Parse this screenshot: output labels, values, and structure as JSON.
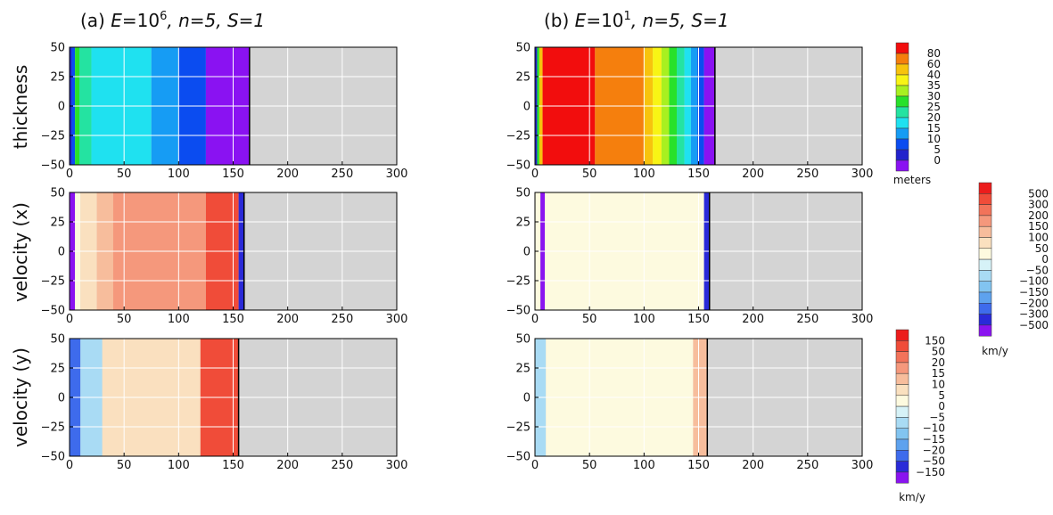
{
  "colors": {
    "no_data": "#d4d4d4",
    "grid": "#ffffff",
    "contour_line": "#000000"
  },
  "panel_titles": {
    "a": {
      "prefix": "(a) ",
      "E_sym": "E",
      "E_eq": "=10",
      "E_exp": "6",
      "rest": ", n=5, S=1"
    },
    "b": {
      "prefix": "(b) ",
      "E_sym": "E",
      "E_eq": "=10",
      "E_exp": "1",
      "rest": ", n=5, S=1"
    }
  },
  "row_labels": [
    "thickness",
    "velocity (x)",
    "velocity (y)"
  ],
  "axes": {
    "x_ticks": [
      "0",
      "50",
      "100",
      "150",
      "200",
      "250",
      "300"
    ],
    "y_ticks": [
      "50",
      "25",
      "0",
      "−25",
      "−50"
    ],
    "xlim": [
      0,
      300
    ],
    "ylim": [
      -50,
      50
    ]
  },
  "colorbars": {
    "thickness": {
      "unit": "meters",
      "labels": [
        "80",
        "60",
        "40",
        "35",
        "30",
        "25",
        "20",
        "15",
        "10",
        "5",
        "0"
      ],
      "colors": [
        "#f20d0d",
        "#f57f0d",
        "#f7c30d",
        "#f8f415",
        "#a8f020",
        "#28e12a",
        "#24e3a1",
        "#1fe1f0",
        "#169cf4",
        "#0b4cf0",
        "#2222cc",
        "#8a12f2"
      ]
    },
    "velocity_x": {
      "unit": "km/y",
      "labels": [
        "500",
        "300",
        "200",
        "150",
        "100",
        "50",
        "0",
        "−50",
        "−100",
        "−150",
        "−200",
        "−300",
        "−500"
      ],
      "colors": [
        "#ec1c1c",
        "#f04c39",
        "#f2735a",
        "#f5987c",
        "#f7bd9c",
        "#fae0bf",
        "#fdfadf",
        "#d6f2f7",
        "#a9dbf4",
        "#82c4f0",
        "#5ea2ee",
        "#3e6bec",
        "#2a2ad8",
        "#8a14f0"
      ]
    },
    "velocity_y": {
      "unit": "km/y",
      "labels": [
        "150",
        "50",
        "20",
        "15",
        "10",
        "5",
        "0",
        "−5",
        "−10",
        "−15",
        "−20",
        "−50",
        "−150"
      ],
      "colors": [
        "#ec1c1c",
        "#f04c39",
        "#f2735a",
        "#f5987c",
        "#f7bd9c",
        "#fae0bf",
        "#fdfadf",
        "#d6f2f7",
        "#a9dbf4",
        "#82c4f0",
        "#5ea2ee",
        "#3e6bec",
        "#2a2ad8",
        "#8a14f0"
      ]
    }
  },
  "chart_data": [
    {
      "type": "heatmap",
      "panel": "a",
      "row": "thickness",
      "xlim": [
        0,
        300
      ],
      "ylim": [
        -50,
        50
      ],
      "grid": true,
      "bands": [
        {
          "x_from": 0,
          "x_to": 2,
          "color": "#2222cc"
        },
        {
          "x_from": 2,
          "x_to": 5,
          "color": "#0b4cf0"
        },
        {
          "x_from": 5,
          "x_to": 9,
          "color": "#28e12a"
        },
        {
          "x_from": 9,
          "x_to": 20,
          "color": "#24e3a1"
        },
        {
          "x_from": 20,
          "x_to": 75,
          "color": "#1fe1f0"
        },
        {
          "x_from": 75,
          "x_to": 100,
          "color": "#169cf4"
        },
        {
          "x_from": 100,
          "x_to": 125,
          "color": "#0b4cf0"
        },
        {
          "x_from": 125,
          "x_to": 165,
          "color": "#8a12f2"
        }
      ]
    },
    {
      "type": "heatmap",
      "panel": "b",
      "row": "thickness",
      "xlim": [
        0,
        300
      ],
      "ylim": [
        -50,
        50
      ],
      "grid": true,
      "bands": [
        {
          "x_from": 0,
          "x_to": 2,
          "color": "#2222cc"
        },
        {
          "x_from": 2,
          "x_to": 4,
          "color": "#28e12a"
        },
        {
          "x_from": 4,
          "x_to": 7,
          "color": "#f7c30d"
        },
        {
          "x_from": 7,
          "x_to": 55,
          "color": "#f20d0d"
        },
        {
          "x_from": 55,
          "x_to": 100,
          "color": "#f57f0d"
        },
        {
          "x_from": 100,
          "x_to": 108,
          "color": "#f7c30d"
        },
        {
          "x_from": 108,
          "x_to": 116,
          "color": "#f8f415"
        },
        {
          "x_from": 116,
          "x_to": 123,
          "color": "#a8f020"
        },
        {
          "x_from": 123,
          "x_to": 130,
          "color": "#28e12a"
        },
        {
          "x_from": 130,
          "x_to": 137,
          "color": "#24e3a1"
        },
        {
          "x_from": 137,
          "x_to": 143,
          "color": "#1fe1f0"
        },
        {
          "x_from": 143,
          "x_to": 149,
          "color": "#169cf4"
        },
        {
          "x_from": 149,
          "x_to": 155,
          "color": "#0b4cf0"
        },
        {
          "x_from": 155,
          "x_to": 165,
          "color": "#8a12f2"
        }
      ]
    },
    {
      "type": "heatmap",
      "panel": "a",
      "row": "velocity_x",
      "xlim": [
        0,
        300
      ],
      "ylim": [
        -50,
        50
      ],
      "grid": true,
      "bands": [
        {
          "x_from": 0,
          "x_to": 5,
          "color": "#8a14f0"
        },
        {
          "x_from": 5,
          "x_to": 10,
          "color": "#fdfadf"
        },
        {
          "x_from": 10,
          "x_to": 25,
          "color": "#fae0bf"
        },
        {
          "x_from": 25,
          "x_to": 40,
          "color": "#f7bd9c"
        },
        {
          "x_from": 40,
          "x_to": 125,
          "color": "#f5987c"
        },
        {
          "x_from": 125,
          "x_to": 155,
          "color": "#f04c39"
        },
        {
          "x_from": 155,
          "x_to": 160,
          "color": "#2a2ad8"
        }
      ]
    },
    {
      "type": "heatmap",
      "panel": "b",
      "row": "velocity_x",
      "xlim": [
        0,
        300
      ],
      "ylim": [
        -50,
        50
      ],
      "grid": true,
      "bands": [
        {
          "x_from": 0,
          "x_to": 5,
          "color": "#fdfadf"
        },
        {
          "x_from": 5,
          "x_to": 9,
          "color": "#8a14f0"
        },
        {
          "x_from": 9,
          "x_to": 155,
          "color": "#fdfadf"
        },
        {
          "x_from": 155,
          "x_to": 160,
          "color": "#2a2ad8"
        }
      ]
    },
    {
      "type": "heatmap",
      "panel": "a",
      "row": "velocity_y",
      "xlim": [
        0,
        300
      ],
      "ylim": [
        -50,
        50
      ],
      "grid": true,
      "bands": [
        {
          "x_from": 0,
          "x_to": 10,
          "color": "#3e6bec"
        },
        {
          "x_from": 10,
          "x_to": 30,
          "color": "#a9dbf4"
        },
        {
          "x_from": 30,
          "x_to": 120,
          "color": "#fae0bf"
        },
        {
          "x_from": 120,
          "x_to": 155,
          "color": "#f04c39"
        }
      ]
    },
    {
      "type": "heatmap",
      "panel": "b",
      "row": "velocity_y",
      "xlim": [
        0,
        300
      ],
      "ylim": [
        -50,
        50
      ],
      "grid": true,
      "bands": [
        {
          "x_from": 0,
          "x_to": 10,
          "color": "#a9dbf4"
        },
        {
          "x_from": 10,
          "x_to": 145,
          "color": "#fdfadf"
        },
        {
          "x_from": 145,
          "x_to": 158,
          "color": "#f7bd9c"
        }
      ]
    }
  ]
}
